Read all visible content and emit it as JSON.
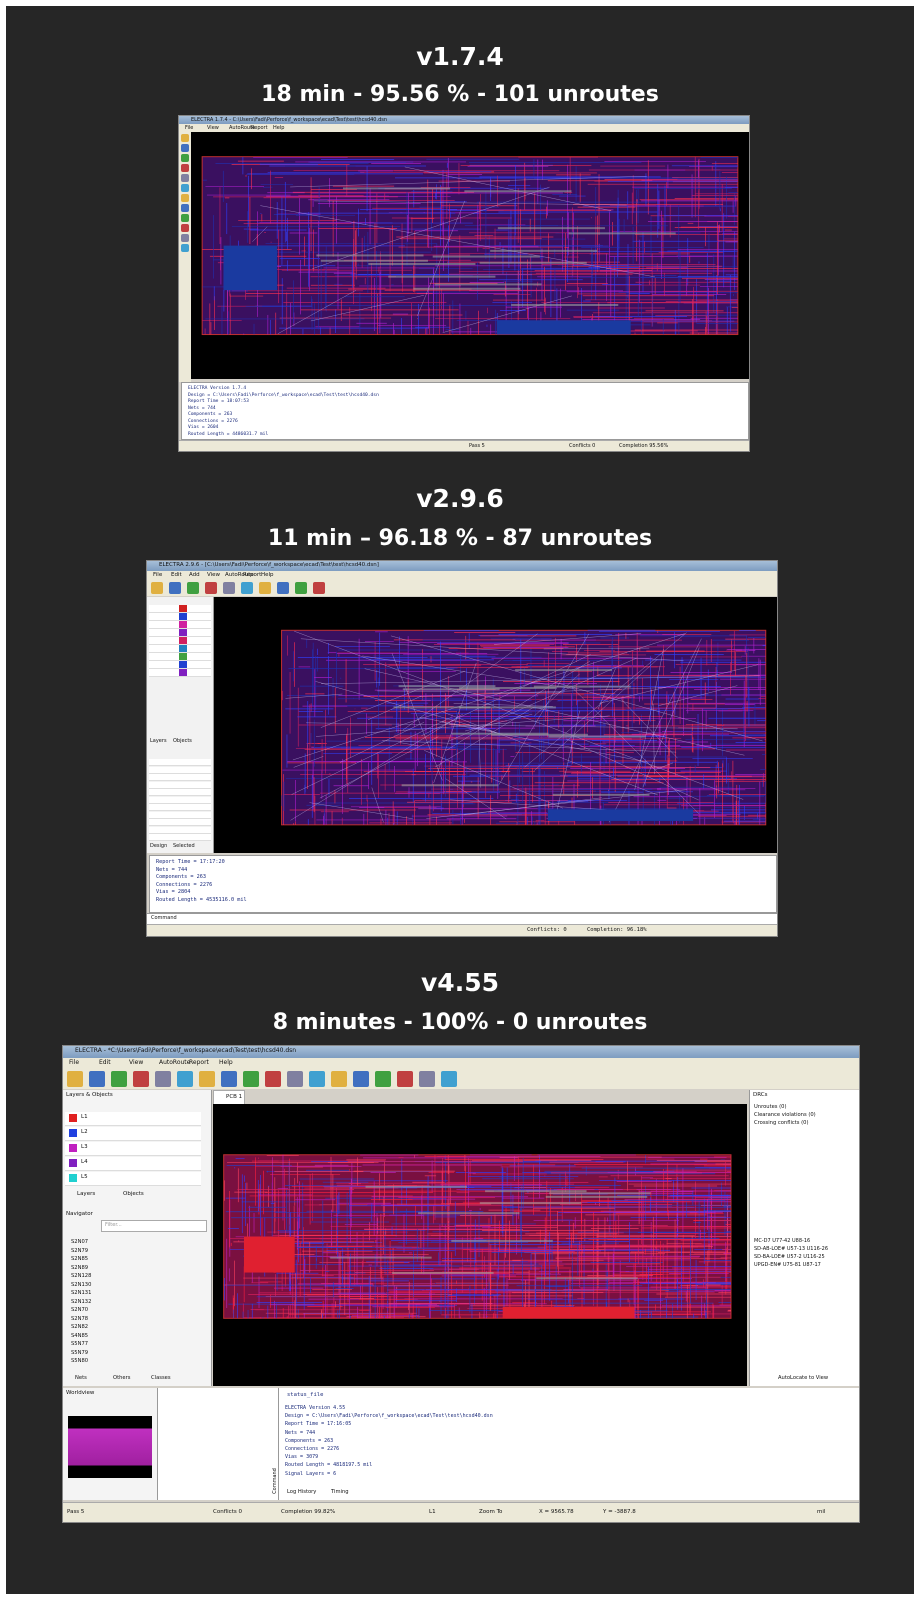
{
  "panels": [
    {
      "version": "v1.7.4",
      "summary": "18 min - 95.56 % - 101 unroutes",
      "window": {
        "title": "ELECTRA 1.7.4 - C:\\Users\\Fadi\\Perforce\\f_workspace\\ecad\\Test\\test\\hcsd40.dsn",
        "menu": [
          "File",
          "View",
          "AutoRoute",
          "Report",
          "Help"
        ],
        "report": [
          "ELECTRA Version  1.7.4",
          "Design       = C:\\Users\\Fadi\\Perforce\\f_workspace\\ecad\\Test\\test\\hcsd40.dsn",
          "Report Time  = 18:07:53",
          "Nets         =      744",
          "Components   =      263",
          "Connections  =     2276",
          "Vias         =     2604",
          "Routed Length = 4486031.7 mil"
        ],
        "status": [
          "Pass 5",
          "Conflicts 0",
          "Completion 95.56%"
        ]
      }
    },
    {
      "version": "v2.9.6",
      "summary": "11 min – 96.18 % - 87 unroutes",
      "window": {
        "title": "ELECTRA 2.9.6 - [C:\\Users\\Fadi\\Perforce\\f_workspace\\ecad\\Test\\test\\hcsd40.dsn]",
        "menu": [
          "File",
          "Edit",
          "Add",
          "View",
          "AutoRoute",
          "Report",
          "Help"
        ],
        "tabs": [
          "Layers",
          "Objects",
          "Design",
          "Selected"
        ],
        "report": [
          "Report Time   = 17:17:20",
          "Nets          =     744",
          "Components    =     263",
          "Connections   =    2276",
          "Vias          =    2804",
          "Routed Length = 4535116.0 mil"
        ],
        "command": "Command",
        "status": [
          "Conflicts: 0",
          "Completion: 96.18%"
        ]
      }
    },
    {
      "version": "v4.55",
      "summary": "8 minutes - 100% - 0 unroutes",
      "window": {
        "title": "ELECTRA - *C:\\Users\\Fadi\\Perforce\\f_workspace\\ecad\\Test\\test\\hcsd40.dsn",
        "menu": [
          "File",
          "Edit",
          "View",
          "AutoRoute",
          "Report",
          "Help"
        ],
        "panels": [
          "Layers & Objects",
          "Navigator",
          "DRCs",
          "PCB 1",
          "Worldview"
        ],
        "layers": [
          "L1",
          "L2",
          "L3",
          "L4",
          "L5"
        ],
        "tabs": [
          "Layers",
          "Objects",
          "Nets",
          "Others",
          "Classes"
        ],
        "nets": [
          "S2N07",
          "S2N79",
          "S2N85",
          "S2N89",
          "S2N128",
          "S2N130",
          "S2N131",
          "S2N132",
          "S2N70",
          "S2N78",
          "S2N82",
          "S4N85",
          "S5N77",
          "S5N79",
          "S5N80"
        ],
        "filter": "Filter...",
        "drcs": [
          "Unroutes (0)",
          "Clearance violations (0)",
          "Crossing conflicts (0)"
        ],
        "conflicts": [
          "MC-D7 U77-42 U88-16",
          "SD-AB-LOE# U57-13 U116-26",
          "SD-BA-LOE# U57-2 U116-25",
          "UPGD-EN# U75-81 U87-17"
        ],
        "autolocate": "AutoLocate to View",
        "report_head": "status_file",
        "report": [
          "ELECTRA Version  4.55",
          "Design        = C:\\Users\\Fadi\\Perforce\\f_workspace\\ecad\\Test\\test\\hcsd40.dsn",
          "Report Time   = 17:16:05",
          "Nets          =     744",
          "Components    =     263",
          "Connections   =    2276",
          "Vias          =    3079",
          "Routed Length = 4818197.5 mil",
          "Signal Layers =       6"
        ],
        "output_tabs": [
          "Log History",
          "Timing"
        ],
        "command": "Command",
        "status": [
          "Pass 5",
          "Conflicts 0",
          "Completion 99.82%",
          "L1",
          "Zoom To",
          "X = 9565.78",
          "Y = -3887.8",
          "mil"
        ]
      }
    }
  ]
}
